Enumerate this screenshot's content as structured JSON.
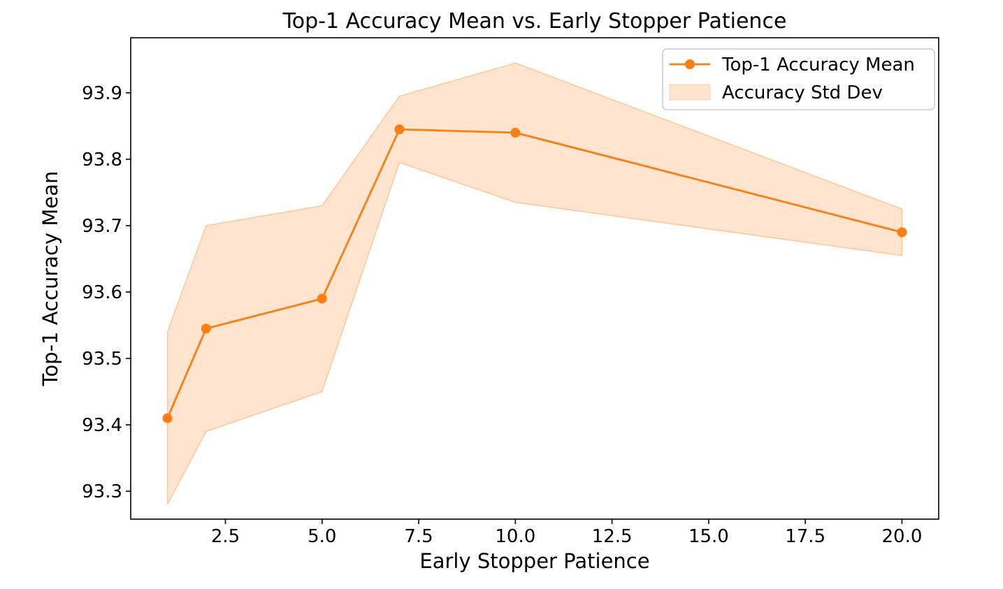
{
  "chart_data": {
    "type": "line",
    "title": "Top-1 Accuracy Mean vs. Early Stopper Patience",
    "xlabel": "Early Stopper Patience",
    "ylabel": "Top-1 Accuracy Mean",
    "x": [
      1,
      2,
      5,
      7,
      10,
      20
    ],
    "series": [
      {
        "name": "Top-1 Accuracy Mean",
        "values": [
          93.41,
          93.545,
          93.59,
          93.845,
          93.84,
          93.69
        ],
        "marker": "circle"
      }
    ],
    "band": {
      "name": "Accuracy Std Dev",
      "upper": [
        93.54,
        93.7,
        93.73,
        93.895,
        93.945,
        93.725
      ],
      "lower": [
        93.28,
        93.39,
        93.45,
        93.795,
        93.735,
        93.655
      ]
    },
    "xlim": [
      0.05,
      20.95
    ],
    "ylim": [
      93.258,
      93.983
    ],
    "xticks": [
      2.5,
      5,
      7.5,
      10,
      12.5,
      15,
      17.5,
      20
    ],
    "xtick_labels": [
      "2.5",
      "5.0",
      "7.5",
      "10.0",
      "12.5",
      "15.0",
      "17.5",
      "20.0"
    ],
    "yticks": [
      93.3,
      93.4,
      93.5,
      93.6,
      93.7,
      93.8,
      93.9
    ],
    "ytick_labels": [
      "93.3",
      "93.4",
      "93.5",
      "93.6",
      "93.7",
      "93.8",
      "93.9"
    ],
    "grid": false,
    "legend": {
      "position": "upper right",
      "entries": [
        {
          "label": "Top-1 Accuracy Mean",
          "type": "line-marker"
        },
        {
          "label": "Accuracy Std Dev",
          "type": "patch"
        }
      ]
    },
    "colors": {
      "line": "#ff7f0e",
      "marker": "#ff7f0e",
      "band_fill": "#ff7f0e",
      "band_fill_opacity": 0.2,
      "band_edge_opacity": 0.38,
      "text": "#000000",
      "spine": "#000000",
      "legend_border": "#cccccc",
      "background": "#ffffff"
    }
  }
}
